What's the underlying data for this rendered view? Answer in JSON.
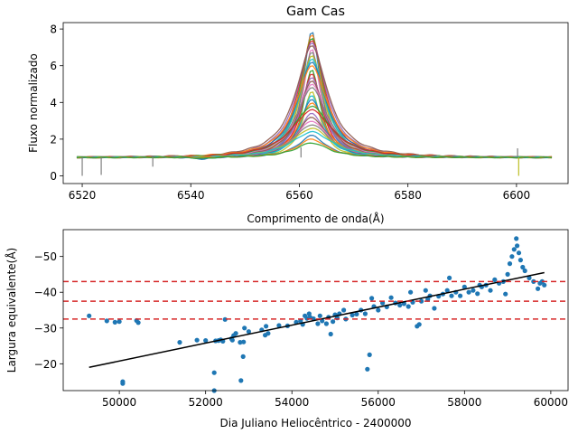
{
  "chart_data": [
    {
      "type": "line",
      "title": "Gam Cas",
      "xlabel": "Comprimento de onda(Å)",
      "ylabel": "Fluxo normalizado",
      "xlim": [
        6516.5,
        6609.5
      ],
      "ylim": [
        -0.42,
        8.35
      ],
      "xticks": [
        6520,
        6540,
        6560,
        6580,
        6600
      ],
      "yticks": [
        0,
        2,
        4,
        6,
        8
      ],
      "grid": false,
      "legend": "none",
      "x_range": [
        6519,
        6606.5
      ],
      "line_center": 6562.3,
      "series_peaks": [
        7.9,
        7.75,
        7.55,
        7.4,
        7.25,
        7.1,
        6.95,
        6.8,
        6.6,
        6.4,
        6.2,
        6.0,
        5.8,
        5.6,
        5.4,
        5.2,
        5.0,
        4.8,
        4.6,
        4.4,
        4.2,
        4.0,
        3.8,
        3.6,
        3.4,
        3.2,
        3.0,
        2.8,
        2.6,
        2.4,
        2.2,
        2.0,
        1.8
      ],
      "series_colors": [
        "#1f77b4",
        "#ff7f0e",
        "#2ca02c",
        "#d62728",
        "#9467bd",
        "#8c564b",
        "#e377c2",
        "#7f7f7f",
        "#bcbd22",
        "#17becf"
      ]
    },
    {
      "type": "scatter",
      "title": "",
      "xlabel": "Dia Juliano Heliocêntrico - 2400000",
      "ylabel": "Largura equivalente(Å)",
      "xlim": [
        48700,
        60400
      ],
      "ylim": [
        -12.5,
        -57.5
      ],
      "y_inverted": true,
      "xticks": [
        50000,
        52000,
        54000,
        56000,
        58000,
        60000
      ],
      "yticks": [
        -20,
        -30,
        -40,
        -50
      ],
      "grid": false,
      "legend": "none",
      "marker_color": "#1f77b4",
      "fit_line": {
        "x": [
          49300,
          59850
        ],
        "y": [
          -19,
          -45.5
        ],
        "color": "#000000"
      },
      "hlines": {
        "values": [
          -32.5,
          -37.5,
          -43
        ],
        "color": "#d62728",
        "style": "dashed"
      },
      "points": [
        [
          49300,
          -33.4
        ],
        [
          49710,
          -32.0
        ],
        [
          49900,
          -31.6
        ],
        [
          50000,
          -31.8
        ],
        [
          50080,
          -14.5
        ],
        [
          50080,
          -15.0
        ],
        [
          50400,
          -32.1
        ],
        [
          50440,
          -31.5
        ],
        [
          51400,
          -26.0
        ],
        [
          51800,
          -26.6
        ],
        [
          52000,
          -26.5
        ],
        [
          52200,
          -12.5
        ],
        [
          52200,
          -17.5
        ],
        [
          52230,
          -26.4
        ],
        [
          52300,
          -26.5
        ],
        [
          52350,
          -26.7
        ],
        [
          52400,
          -26.3
        ],
        [
          52450,
          -32.4
        ],
        [
          52600,
          -27.0
        ],
        [
          52620,
          -26.6
        ],
        [
          52650,
          -27.9
        ],
        [
          52700,
          -28.5
        ],
        [
          52800,
          -26.0
        ],
        [
          52820,
          -15.3
        ],
        [
          52870,
          -22.0
        ],
        [
          52880,
          -26.1
        ],
        [
          52900,
          -30.0
        ],
        [
          53000,
          -29.0
        ],
        [
          53300,
          -29.5
        ],
        [
          53380,
          -28.0
        ],
        [
          53400,
          -30.5
        ],
        [
          53450,
          -28.5
        ],
        [
          53700,
          -30.7
        ],
        [
          53900,
          -30.6
        ],
        [
          54100,
          -31.6
        ],
        [
          54200,
          -32.0
        ],
        [
          54250,
          -31.0
        ],
        [
          54300,
          -33.4
        ],
        [
          54350,
          -32.7
        ],
        [
          54400,
          -34.0
        ],
        [
          54420,
          -33.0
        ],
        [
          54500,
          -32.6
        ],
        [
          54600,
          -31.2
        ],
        [
          54650,
          -33.4
        ],
        [
          54700,
          -32.0
        ],
        [
          54800,
          -31.2
        ],
        [
          54850,
          -33.0
        ],
        [
          54900,
          -28.3
        ],
        [
          54950,
          -31.8
        ],
        [
          55000,
          -33.7
        ],
        [
          55050,
          -32.8
        ],
        [
          55100,
          -34.0
        ],
        [
          55200,
          -35.0
        ],
        [
          55250,
          -32.5
        ],
        [
          55400,
          -33.6
        ],
        [
          55500,
          -33.9
        ],
        [
          55600,
          -35.0
        ],
        [
          55700,
          -34.0
        ],
        [
          55750,
          -18.5
        ],
        [
          55800,
          -22.5
        ],
        [
          55850,
          -38.3
        ],
        [
          55900,
          -36.0
        ],
        [
          56000,
          -35.0
        ],
        [
          56100,
          -37.0
        ],
        [
          56200,
          -35.9
        ],
        [
          56300,
          -38.5
        ],
        [
          56400,
          -37.0
        ],
        [
          56500,
          -36.4
        ],
        [
          56600,
          -36.8
        ],
        [
          56700,
          -36.0
        ],
        [
          56750,
          -40.0
        ],
        [
          56800,
          -37.2
        ],
        [
          56900,
          -30.5
        ],
        [
          56950,
          -31.0
        ],
        [
          57000,
          -37.5
        ],
        [
          57100,
          -40.5
        ],
        [
          57150,
          -38.0
        ],
        [
          57200,
          -39.0
        ],
        [
          57300,
          -35.5
        ],
        [
          57400,
          -38.9
        ],
        [
          57500,
          -39.5
        ],
        [
          57600,
          -40.5
        ],
        [
          57650,
          -44.0
        ],
        [
          57700,
          -39.0
        ],
        [
          57800,
          -40.0
        ],
        [
          57900,
          -39.0
        ],
        [
          58000,
          -41.5
        ],
        [
          58100,
          -40.0
        ],
        [
          58200,
          -40.5
        ],
        [
          58300,
          -39.6
        ],
        [
          58350,
          -42.0
        ],
        [
          58400,
          -41.5
        ],
        [
          58500,
          -42.0
        ],
        [
          58600,
          -40.5
        ],
        [
          58700,
          -43.5
        ],
        [
          58800,
          -42.5
        ],
        [
          58900,
          -43.0
        ],
        [
          58950,
          -39.5
        ],
        [
          59000,
          -45.0
        ],
        [
          59050,
          -48.0
        ],
        [
          59100,
          -50.0
        ],
        [
          59150,
          -52.0
        ],
        [
          59200,
          -55.0
        ],
        [
          59220,
          -53.0
        ],
        [
          59260,
          -51.0
        ],
        [
          59300,
          -49.0
        ],
        [
          59350,
          -47.0
        ],
        [
          59400,
          -46.0
        ],
        [
          59500,
          -44.0
        ],
        [
          59600,
          -43.0
        ],
        [
          59700,
          -41.0
        ],
        [
          59750,
          -42.5
        ],
        [
          59800,
          -43.0
        ],
        [
          59850,
          -42.0
        ]
      ]
    }
  ]
}
